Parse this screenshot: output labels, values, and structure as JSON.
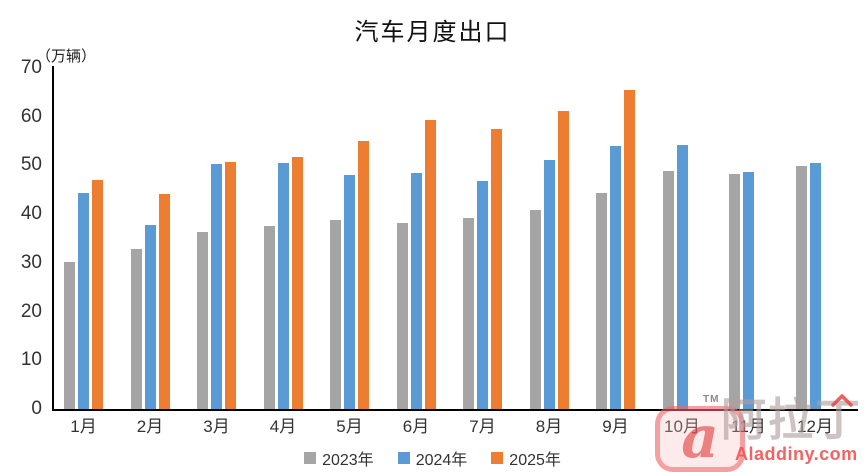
{
  "title": "汽车月度出口",
  "unit_label": "（万辆）",
  "colors": {
    "series_2023": "#a5a5a5",
    "series_2024": "#5b9bd5",
    "series_2025": "#ed7d31",
    "axis": "#000000",
    "tick_text": "#333333",
    "watermark_red": "#e84848"
  },
  "chart_data": {
    "type": "bar",
    "title": "汽车月度出口",
    "ylabel": "（万辆）",
    "ylim": [
      0,
      70
    ],
    "yticks": [
      0,
      10,
      20,
      30,
      40,
      50,
      60,
      70
    ],
    "grid": false,
    "legend_position": "bottom",
    "categories": [
      "1月",
      "2月",
      "3月",
      "4月",
      "5月",
      "6月",
      "7月",
      "8月",
      "9月",
      "10月",
      "11月",
      "12月"
    ],
    "series": [
      {
        "name": "2023年",
        "color": "#a5a5a5",
        "values": [
          30.1,
          32.9,
          36.4,
          37.6,
          38.9,
          38.2,
          39.2,
          40.8,
          44.4,
          48.8,
          48.2,
          49.9
        ]
      },
      {
        "name": "2024年",
        "color": "#5b9bd5",
        "values": [
          44.3,
          37.7,
          50.2,
          50.4,
          48.1,
          48.5,
          46.9,
          51.1,
          53.9,
          54.2,
          48.7,
          50.4
        ]
      },
      {
        "name": "2025年",
        "color": "#ed7d31",
        "values": [
          47.0,
          44.1,
          50.7,
          51.7,
          55.1,
          59.3,
          57.5,
          61.1,
          65.4,
          null,
          null,
          null
        ]
      }
    ]
  },
  "legend": {
    "items": [
      {
        "label": "2023年"
      },
      {
        "label": "2024年"
      },
      {
        "label": "2025年"
      }
    ]
  },
  "watermark": {
    "tm": "TM",
    "logo_letter": "a",
    "brand_cn": "阿拉丁",
    "brand_url": "Aladdiny.com"
  }
}
